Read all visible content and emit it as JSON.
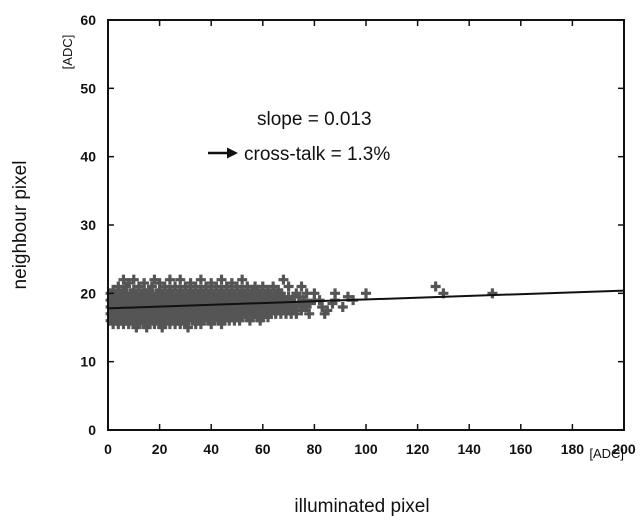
{
  "chart_data": {
    "type": "scatter",
    "title": "",
    "xlabel": "illuminated pixel",
    "ylabel": "neighbour pixel",
    "x_unit": "[ADC]",
    "y_unit": "[ADC]",
    "xlim": [
      0,
      200
    ],
    "ylim": [
      0,
      60
    ],
    "x_ticks": [
      "0",
      "20",
      "40",
      "60",
      "80",
      "100",
      "120",
      "140",
      "160",
      "180",
      "200"
    ],
    "y_ticks": [
      "0",
      "10",
      "20",
      "30",
      "40",
      "50",
      "60"
    ],
    "grid": false,
    "marker": "plus",
    "colors": {
      "points": "#555555",
      "fit": "#111111",
      "text": "#111111"
    },
    "fit_line": {
      "slope": 0.013,
      "intercept": 17.8,
      "x_range": [
        0,
        200
      ]
    },
    "annotations": {
      "slope": "slope = 0.013",
      "crosstalk": "cross-talk = 1.3%"
    },
    "points": [
      [
        1,
        16
      ],
      [
        1,
        17
      ],
      [
        1,
        18
      ],
      [
        1,
        19
      ],
      [
        1,
        20
      ],
      [
        2,
        15.5
      ],
      [
        2,
        16.5
      ],
      [
        2,
        17.5
      ],
      [
        2,
        18.5
      ],
      [
        2,
        19.5
      ],
      [
        2,
        20.5
      ],
      [
        3,
        16
      ],
      [
        3,
        17
      ],
      [
        3,
        18
      ],
      [
        3,
        19
      ],
      [
        3,
        20
      ],
      [
        4,
        15.5
      ],
      [
        4,
        16.5
      ],
      [
        4,
        17.5
      ],
      [
        4,
        18.5
      ],
      [
        4,
        19.5
      ],
      [
        4,
        21
      ],
      [
        5,
        16
      ],
      [
        5,
        17
      ],
      [
        5,
        18
      ],
      [
        5,
        19
      ],
      [
        5,
        20
      ],
      [
        6,
        15.5
      ],
      [
        6,
        16.5
      ],
      [
        6,
        17.5
      ],
      [
        6,
        18.5
      ],
      [
        6,
        19.5
      ],
      [
        6,
        20.5
      ],
      [
        6,
        22
      ],
      [
        7,
        16
      ],
      [
        7,
        17
      ],
      [
        7,
        18
      ],
      [
        7,
        19
      ],
      [
        7,
        20
      ],
      [
        7,
        21
      ],
      [
        8,
        15.5
      ],
      [
        8,
        16.5
      ],
      [
        8,
        17.5
      ],
      [
        8,
        18.5
      ],
      [
        8,
        19.5
      ],
      [
        8,
        21.5
      ],
      [
        9,
        16
      ],
      [
        9,
        17
      ],
      [
        9,
        18
      ],
      [
        9,
        19
      ],
      [
        9,
        20
      ],
      [
        10,
        15.5
      ],
      [
        10,
        16.5
      ],
      [
        10,
        17.5
      ],
      [
        10,
        18.5
      ],
      [
        10,
        19.5
      ],
      [
        10,
        20.5
      ],
      [
        10,
        22
      ],
      [
        11,
        15
      ],
      [
        11,
        16
      ],
      [
        11,
        17
      ],
      [
        11,
        18
      ],
      [
        11,
        19
      ],
      [
        11,
        20
      ],
      [
        12,
        15.5
      ],
      [
        12,
        16.5
      ],
      [
        12,
        17.5
      ],
      [
        12,
        18.5
      ],
      [
        12,
        19.5
      ],
      [
        12,
        21
      ],
      [
        13,
        16
      ],
      [
        13,
        17
      ],
      [
        13,
        18
      ],
      [
        13,
        19
      ],
      [
        13,
        20
      ],
      [
        14,
        15.5
      ],
      [
        14,
        16.5
      ],
      [
        14,
        17.5
      ],
      [
        14,
        18.5
      ],
      [
        14,
        19.5
      ],
      [
        14,
        20.5
      ],
      [
        14,
        21.5
      ],
      [
        15,
        15
      ],
      [
        15,
        16
      ],
      [
        15,
        17
      ],
      [
        15,
        18
      ],
      [
        15,
        19
      ],
      [
        15,
        20
      ],
      [
        16,
        15.5
      ],
      [
        16,
        16.5
      ],
      [
        16,
        17.5
      ],
      [
        16,
        18.5
      ],
      [
        16,
        19.5
      ],
      [
        16,
        20.5
      ],
      [
        17,
        16
      ],
      [
        17,
        17
      ],
      [
        17,
        18
      ],
      [
        17,
        19
      ],
      [
        17,
        20
      ],
      [
        17,
        21
      ],
      [
        18,
        15.5
      ],
      [
        18,
        16.5
      ],
      [
        18,
        17.5
      ],
      [
        18,
        18.5
      ],
      [
        18,
        19.5
      ],
      [
        18,
        22
      ],
      [
        19,
        16
      ],
      [
        19,
        17
      ],
      [
        19,
        18
      ],
      [
        19,
        19
      ],
      [
        19,
        20
      ],
      [
        20,
        15.5
      ],
      [
        20,
        16.5
      ],
      [
        20,
        17.5
      ],
      [
        20,
        18.5
      ],
      [
        20,
        19.5
      ],
      [
        20,
        20.5
      ],
      [
        20,
        21.5
      ],
      [
        21,
        15
      ],
      [
        21,
        16
      ],
      [
        21,
        17
      ],
      [
        21,
        18
      ],
      [
        21,
        19
      ],
      [
        21,
        20
      ],
      [
        22,
        15.5
      ],
      [
        22,
        16.5
      ],
      [
        22,
        17.5
      ],
      [
        22,
        18.5
      ],
      [
        22,
        19.5
      ],
      [
        22,
        21
      ],
      [
        23,
        16
      ],
      [
        23,
        17
      ],
      [
        23,
        18
      ],
      [
        23,
        19
      ],
      [
        23,
        20
      ],
      [
        24,
        15.5
      ],
      [
        24,
        16.5
      ],
      [
        24,
        17.5
      ],
      [
        24,
        18.5
      ],
      [
        24,
        19.5
      ],
      [
        24,
        20.5
      ],
      [
        24,
        22
      ],
      [
        25,
        16
      ],
      [
        25,
        17
      ],
      [
        25,
        18
      ],
      [
        25,
        19
      ],
      [
        25,
        20
      ],
      [
        26,
        15.5
      ],
      [
        26,
        16.5
      ],
      [
        26,
        17.5
      ],
      [
        26,
        18.5
      ],
      [
        26,
        19.5
      ],
      [
        26,
        21
      ],
      [
        27,
        16
      ],
      [
        27,
        17
      ],
      [
        27,
        18
      ],
      [
        27,
        19
      ],
      [
        27,
        20
      ],
      [
        28,
        15.5
      ],
      [
        28,
        16.5
      ],
      [
        28,
        17.5
      ],
      [
        28,
        18.5
      ],
      [
        28,
        19.5
      ],
      [
        28,
        20.5
      ],
      [
        28,
        22
      ],
      [
        29,
        16
      ],
      [
        29,
        17
      ],
      [
        29,
        18
      ],
      [
        29,
        19
      ],
      [
        29,
        20
      ],
      [
        30,
        15.5
      ],
      [
        30,
        16.5
      ],
      [
        30,
        17.5
      ],
      [
        30,
        18.5
      ],
      [
        30,
        19.5
      ],
      [
        30,
        21
      ],
      [
        31,
        15
      ],
      [
        31,
        16
      ],
      [
        31,
        17
      ],
      [
        31,
        18
      ],
      [
        31,
        19
      ],
      [
        31,
        20
      ],
      [
        32,
        16.5
      ],
      [
        32,
        17.5
      ],
      [
        32,
        18.5
      ],
      [
        32,
        19.5
      ],
      [
        32,
        20.5
      ],
      [
        32,
        21.5
      ],
      [
        33,
        16
      ],
      [
        33,
        17
      ],
      [
        33,
        18
      ],
      [
        33,
        19
      ],
      [
        33,
        20
      ],
      [
        34,
        15.5
      ],
      [
        34,
        16.5
      ],
      [
        34,
        17.5
      ],
      [
        34,
        18.5
      ],
      [
        34,
        19.5
      ],
      [
        34,
        21
      ],
      [
        35,
        16
      ],
      [
        35,
        17
      ],
      [
        35,
        18
      ],
      [
        35,
        19
      ],
      [
        35,
        20
      ],
      [
        36,
        15.5
      ],
      [
        36,
        16.5
      ],
      [
        36,
        17.5
      ],
      [
        36,
        18.5
      ],
      [
        36,
        19.5
      ],
      [
        36,
        20.5
      ],
      [
        36,
        22
      ],
      [
        37,
        16
      ],
      [
        37,
        17
      ],
      [
        37,
        18
      ],
      [
        37,
        19
      ],
      [
        37,
        20
      ],
      [
        38,
        16.5
      ],
      [
        38,
        17.5
      ],
      [
        38,
        18.5
      ],
      [
        38,
        19.5
      ],
      [
        38,
        21
      ],
      [
        39,
        16
      ],
      [
        39,
        17
      ],
      [
        39,
        18
      ],
      [
        39,
        19
      ],
      [
        39,
        20
      ],
      [
        40,
        15.5
      ],
      [
        40,
        16.5
      ],
      [
        40,
        17.5
      ],
      [
        40,
        18.5
      ],
      [
        40,
        19.5
      ],
      [
        40,
        20.5
      ],
      [
        40,
        21.5
      ],
      [
        41,
        16
      ],
      [
        41,
        17
      ],
      [
        41,
        18
      ],
      [
        41,
        19
      ],
      [
        41,
        20
      ],
      [
        42,
        16.5
      ],
      [
        42,
        17.5
      ],
      [
        42,
        18.5
      ],
      [
        42,
        19.5
      ],
      [
        42,
        21
      ],
      [
        43,
        16
      ],
      [
        43,
        17
      ],
      [
        43,
        18
      ],
      [
        43,
        19
      ],
      [
        43,
        20
      ],
      [
        44,
        15.5
      ],
      [
        44,
        16.5
      ],
      [
        44,
        17.5
      ],
      [
        44,
        18.5
      ],
      [
        44,
        19.5
      ],
      [
        44,
        20.5
      ],
      [
        44,
        22
      ],
      [
        45,
        16
      ],
      [
        45,
        17
      ],
      [
        45,
        18
      ],
      [
        45,
        19
      ],
      [
        45,
        20
      ],
      [
        46,
        16.5
      ],
      [
        46,
        17.5
      ],
      [
        46,
        18.5
      ],
      [
        46,
        19.5
      ],
      [
        46,
        21
      ],
      [
        47,
        16
      ],
      [
        47,
        17
      ],
      [
        47,
        18
      ],
      [
        47,
        19
      ],
      [
        47,
        20
      ],
      [
        48,
        16.5
      ],
      [
        48,
        17.5
      ],
      [
        48,
        18.5
      ],
      [
        48,
        19.5
      ],
      [
        48,
        20.5
      ],
      [
        48,
        21.5
      ],
      [
        49,
        16
      ],
      [
        49,
        17
      ],
      [
        49,
        18
      ],
      [
        49,
        19
      ],
      [
        49,
        20
      ],
      [
        50,
        16.5
      ],
      [
        50,
        17.5
      ],
      [
        50,
        18.5
      ],
      [
        50,
        19.5
      ],
      [
        50,
        21
      ],
      [
        51,
        16
      ],
      [
        51,
        17
      ],
      [
        51,
        18
      ],
      [
        51,
        19
      ],
      [
        51,
        20
      ],
      [
        52,
        16.5
      ],
      [
        52,
        17.5
      ],
      [
        52,
        18.5
      ],
      [
        52,
        19.5
      ],
      [
        52,
        20.5
      ],
      [
        52,
        22
      ],
      [
        53,
        17
      ],
      [
        53,
        18
      ],
      [
        53,
        19
      ],
      [
        53,
        20
      ],
      [
        54,
        16.5
      ],
      [
        54,
        17.5
      ],
      [
        54,
        18.5
      ],
      [
        54,
        19.5
      ],
      [
        54,
        21
      ],
      [
        55,
        16
      ],
      [
        55,
        17
      ],
      [
        55,
        18
      ],
      [
        55,
        19
      ],
      [
        55,
        20
      ],
      [
        56,
        16.5
      ],
      [
        56,
        17.5
      ],
      [
        56,
        18.5
      ],
      [
        56,
        19.5
      ],
      [
        56,
        20.5
      ],
      [
        57,
        17
      ],
      [
        57,
        18
      ],
      [
        57,
        19
      ],
      [
        57,
        20
      ],
      [
        57,
        21
      ],
      [
        58,
        16.5
      ],
      [
        58,
        17.5
      ],
      [
        58,
        18.5
      ],
      [
        58,
        19.5
      ],
      [
        58,
        20.5
      ],
      [
        59,
        16
      ],
      [
        59,
        17
      ],
      [
        59,
        18
      ],
      [
        59,
        19
      ],
      [
        59,
        20
      ],
      [
        60,
        16.5
      ],
      [
        60,
        17.5
      ],
      [
        60,
        18.5
      ],
      [
        60,
        19.5
      ],
      [
        60,
        21
      ],
      [
        61,
        17
      ],
      [
        61,
        18
      ],
      [
        61,
        19
      ],
      [
        61,
        20
      ],
      [
        62,
        16.5
      ],
      [
        62,
        17.5
      ],
      [
        62,
        18.5
      ],
      [
        62,
        19.5
      ],
      [
        62,
        20.5
      ],
      [
        63,
        17
      ],
      [
        63,
        18
      ],
      [
        63,
        19
      ],
      [
        63,
        20
      ],
      [
        64,
        17.5
      ],
      [
        64,
        18.5
      ],
      [
        64,
        19.5
      ],
      [
        64,
        21
      ],
      [
        65,
        17
      ],
      [
        65,
        18
      ],
      [
        65,
        19
      ],
      [
        65,
        20
      ],
      [
        66,
        17.5
      ],
      [
        66,
        18.5
      ],
      [
        66,
        19.5
      ],
      [
        66,
        20.5
      ],
      [
        67,
        17
      ],
      [
        67,
        18
      ],
      [
        67,
        19
      ],
      [
        67,
        20
      ],
      [
        68,
        17.5
      ],
      [
        68,
        18.5
      ],
      [
        68,
        19.5
      ],
      [
        68,
        22
      ],
      [
        69,
        17
      ],
      [
        69,
        18
      ],
      [
        69,
        19
      ],
      [
        70,
        17.5
      ],
      [
        70,
        18.5
      ],
      [
        70,
        19.5
      ],
      [
        70,
        21
      ],
      [
        71,
        17
      ],
      [
        71,
        18
      ],
      [
        71,
        19
      ],
      [
        72,
        17.5
      ],
      [
        72,
        18.5
      ],
      [
        72,
        19.5
      ],
      [
        73,
        17
      ],
      [
        73,
        18
      ],
      [
        73,
        20
      ],
      [
        74,
        18.5
      ],
      [
        74,
        19.5
      ],
      [
        75,
        17.5
      ],
      [
        75,
        18.5
      ],
      [
        75,
        21
      ],
      [
        76,
        18
      ],
      [
        76,
        19
      ],
      [
        77,
        18
      ],
      [
        77,
        20
      ],
      [
        78,
        17
      ],
      [
        78,
        18.5
      ],
      [
        80,
        19
      ],
      [
        80,
        20
      ],
      [
        82,
        19
      ],
      [
        83,
        18
      ],
      [
        84,
        17
      ],
      [
        85,
        17.5
      ],
      [
        87,
        18.5
      ],
      [
        88,
        19
      ],
      [
        88,
        20
      ],
      [
        91,
        18
      ],
      [
        93,
        19.5
      ],
      [
        95,
        19
      ],
      [
        100,
        20
      ],
      [
        127,
        21
      ],
      [
        130,
        20
      ],
      [
        149,
        20
      ]
    ]
  }
}
